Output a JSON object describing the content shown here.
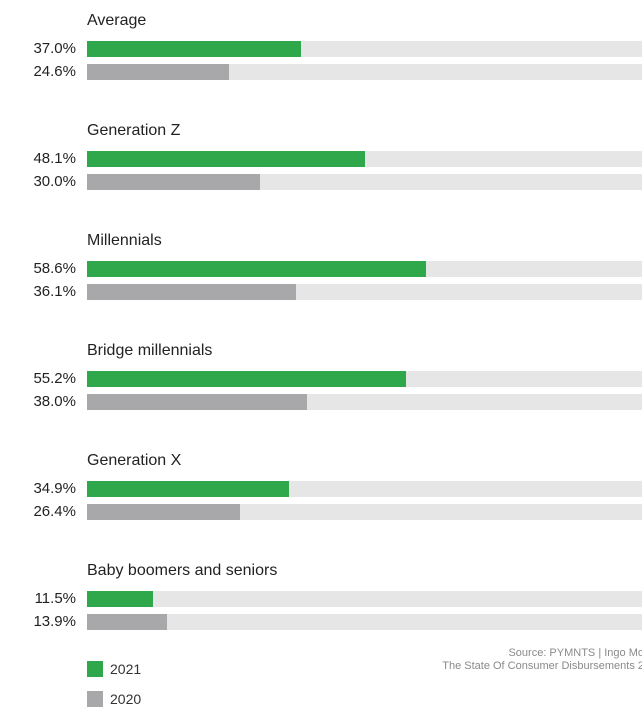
{
  "chart_data": {
    "type": "bar",
    "orientation": "horizontal",
    "categories": [
      "Average",
      "Generation Z",
      "Millennials",
      "Bridge millennials",
      "Generation X",
      "Baby boomers and seniors"
    ],
    "series": [
      {
        "name": "2021",
        "values": [
          37.0,
          48.1,
          58.6,
          55.2,
          34.9,
          11.5
        ],
        "labels": [
          "37.0%",
          "48.1%",
          "58.6%",
          "55.2%",
          "34.9%",
          "11.5%"
        ],
        "color": "#2ea84a"
      },
      {
        "name": "2020",
        "values": [
          24.6,
          30.0,
          36.1,
          38.0,
          26.4,
          13.9
        ],
        "labels": [
          "24.6%",
          "30.0%",
          "36.1%",
          "38.0%",
          "26.4%",
          "13.9%"
        ],
        "color": "#a8a8ab"
      }
    ],
    "xlim": [
      0,
      100
    ],
    "track_color": "#e6e6e6",
    "legend_position": "bottom-left"
  },
  "source": {
    "line1": "Source: PYMNTS | Ingo Mo",
    "line2": "The State Of Consumer Disbursements 2"
  }
}
